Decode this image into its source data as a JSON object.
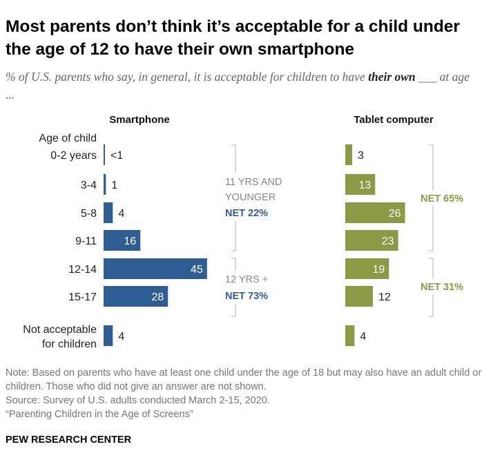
{
  "title": "Most parents don’t think it’s acceptable for a child under the age of 12 to have their own smartphone",
  "subtitle": {
    "pre": "% of U.S. parents who say, in general, it is acceptable for children to have ",
    "bold": "their own",
    "post": " ___ at age ..."
  },
  "chart_data": {
    "type": "bar",
    "orientation": "horizontal",
    "row_header": "Age of child",
    "categories": [
      "0-2 years",
      "3-4",
      "5-8",
      "9-11",
      "12-14",
      "15-17",
      "Not acceptable for children"
    ],
    "series": [
      {
        "name": "Smartphone",
        "color": "#2f5d94",
        "values": [
          0.5,
          1,
          4,
          16,
          45,
          28,
          4
        ],
        "labels": [
          "<1",
          "1",
          "4",
          "16",
          "45",
          "28",
          "4"
        ]
      },
      {
        "name": "Tablet computer",
        "color": "#8a9a45",
        "values": [
          3,
          13,
          26,
          23,
          19,
          12,
          4
        ],
        "labels": [
          "3",
          "13",
          "26",
          "23",
          "19",
          "12",
          "4"
        ]
      }
    ],
    "annotations": {
      "smartphone_under12_label": "11 YRS AND YOUNGER",
      "smartphone_under12_net": "NET 22%",
      "smartphone_12plus_label": "12 YRS +",
      "smartphone_12plus_net": "NET 73%",
      "tablet_under12_net": "NET 65%",
      "tablet_12plus_net": "NET 31%"
    }
  },
  "notes": [
    "Note: Based on parents who have at least one child under the age of 18 but may also have an adult child or children. Those who did not give an answer are not shown.",
    "Source: Survey of U.S. adults conducted March 2-15, 2020.",
    "“Parenting Children in the Age of Screens”"
  ],
  "brand": "PEW RESEARCH CENTER"
}
